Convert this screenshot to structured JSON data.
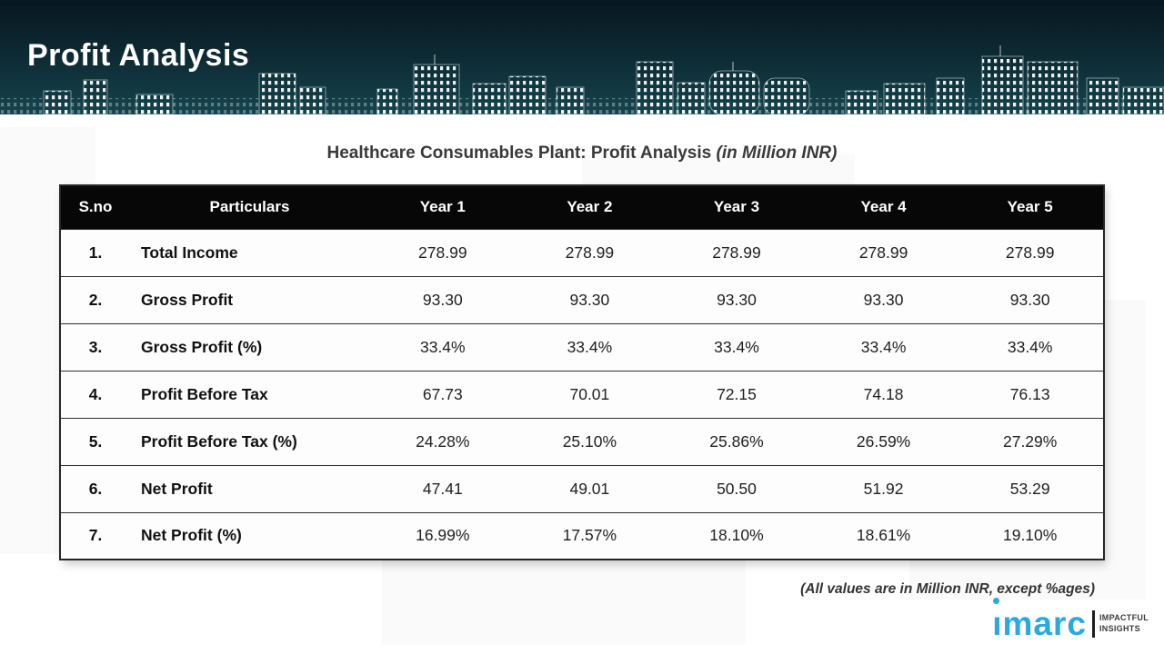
{
  "header": {
    "title": "Profit Analysis"
  },
  "subtitle": {
    "text": "Healthcare Consumables Plant: Profit Analysis ",
    "suffix": "(in Million INR)"
  },
  "table": {
    "columns": [
      "S.no",
      "Particulars",
      "Year 1",
      "Year 2",
      "Year 3",
      "Year 4",
      "Year 5"
    ],
    "rows": [
      {
        "sno": "1.",
        "label": "Total Income",
        "values": [
          "278.99",
          "278.99",
          "278.99",
          "278.99",
          "278.99"
        ]
      },
      {
        "sno": "2.",
        "label": "Gross Profit",
        "values": [
          "93.30",
          "93.30",
          "93.30",
          "93.30",
          "93.30"
        ]
      },
      {
        "sno": "3.",
        "label": "Gross Profit (%)",
        "values": [
          "33.4%",
          "33.4%",
          "33.4%",
          "33.4%",
          "33.4%"
        ]
      },
      {
        "sno": "4.",
        "label": "Profit Before Tax",
        "values": [
          "67.73",
          "70.01",
          "72.15",
          "74.18",
          "76.13"
        ]
      },
      {
        "sno": "5.",
        "label": "Profit Before Tax (%)",
        "values": [
          "24.28%",
          "25.10%",
          "25.86%",
          "26.59%",
          "27.29%"
        ]
      },
      {
        "sno": "6.",
        "label": "Net Profit",
        "values": [
          "47.41",
          "49.01",
          "50.50",
          "51.92",
          "53.29"
        ]
      },
      {
        "sno": "7.",
        "label": "Net Profit (%)",
        "values": [
          "16.99%",
          "17.57%",
          "18.10%",
          "18.61%",
          "19.10%"
        ]
      }
    ]
  },
  "footnote": "(All values are in Million INR, except %ages)",
  "logo": {
    "brand": "imarc",
    "brand_dotless": "ımarc",
    "tagline_line1": "IMPACTFUL",
    "tagline_line2": "INSIGHTS",
    "brand_color": "#2aa9e0"
  },
  "colors": {
    "header_gradient_top": "#081720",
    "header_gradient_bottom": "#15434d",
    "table_header_bg": "#070707",
    "accent_blue": "#2aa9e0"
  }
}
